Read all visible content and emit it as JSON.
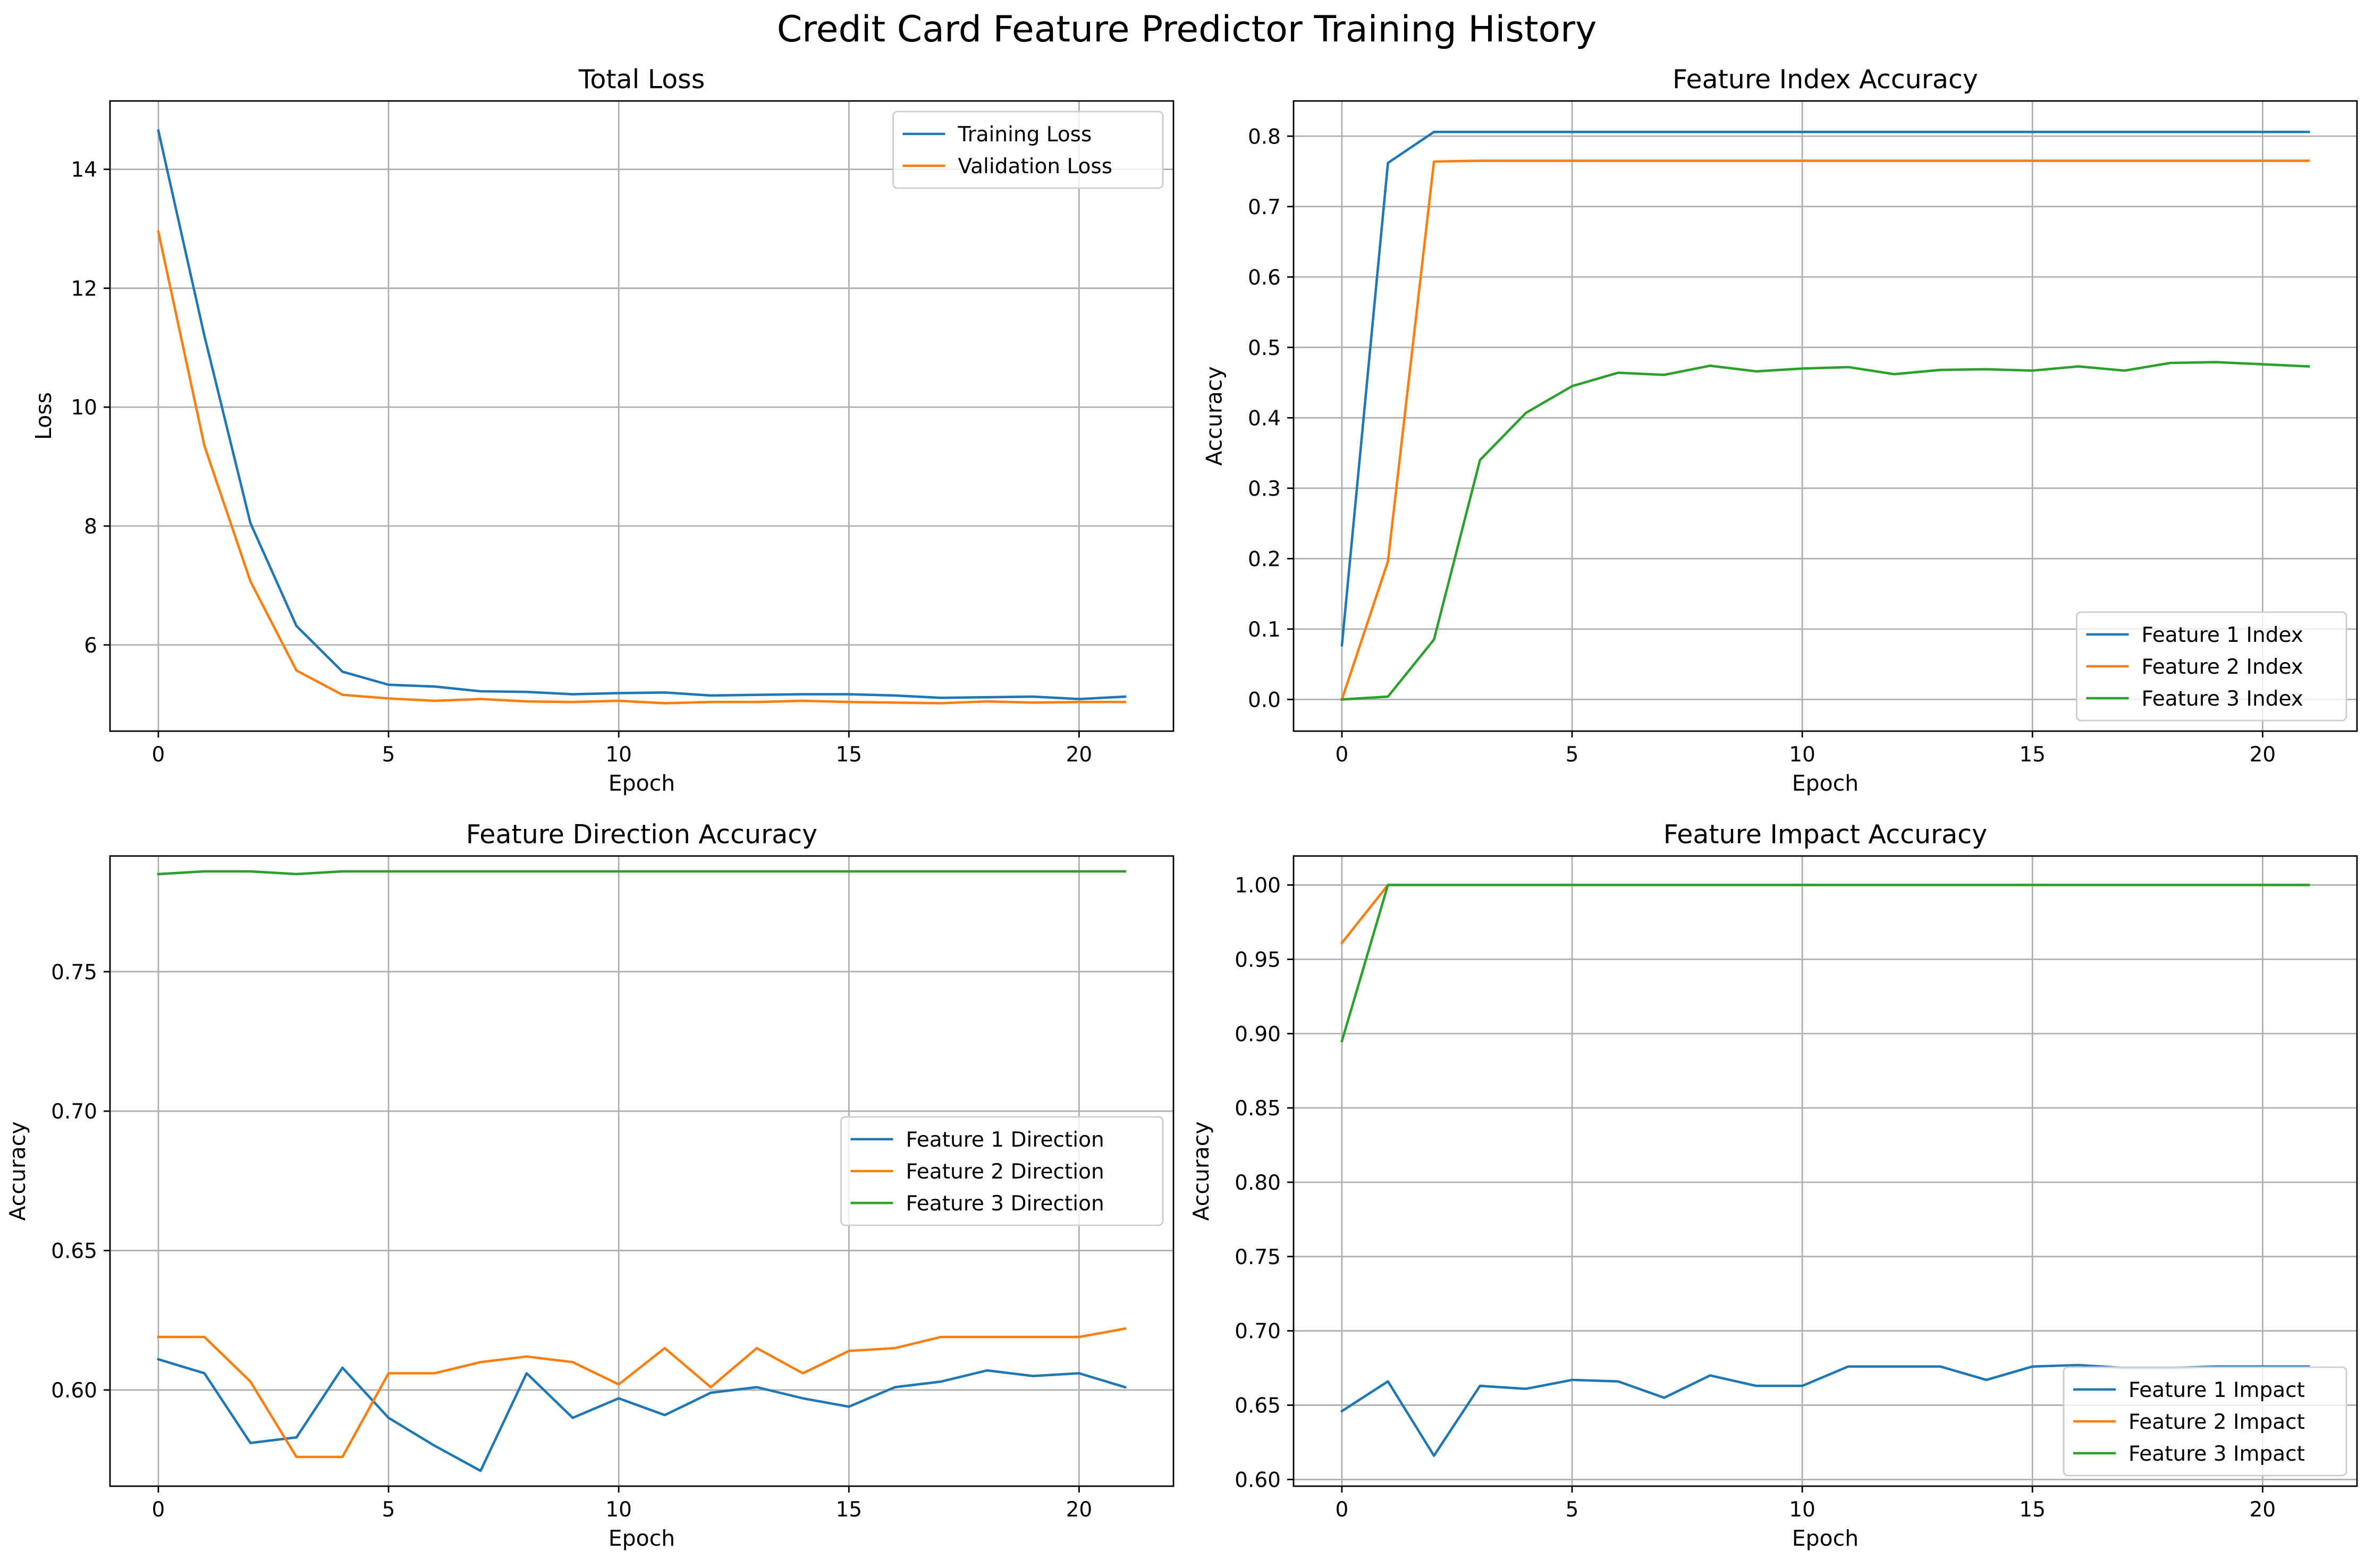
{
  "figure": {
    "suptitle": "Credit Card Feature Predictor Training History"
  },
  "colors": {
    "blue": "#1f77b4",
    "orange": "#ff7f0e",
    "green": "#2ca02c",
    "grid": "#b0b0b0"
  },
  "chart_data": [
    {
      "type": "line",
      "title": "Total Loss",
      "xlabel": "Epoch",
      "ylabel": "Loss",
      "xlim": [
        -1.05,
        22.05
      ],
      "ylim": [
        4.55,
        15.15
      ],
      "xticks": [
        0,
        5,
        10,
        15,
        20
      ],
      "yticks": [
        6,
        8,
        10,
        12,
        14
      ],
      "tick_decimals": 0,
      "grid": true,
      "legend": "upper right",
      "x": [
        0,
        1,
        2,
        3,
        4,
        5,
        6,
        7,
        8,
        9,
        10,
        11,
        12,
        13,
        14,
        15,
        16,
        17,
        18,
        19,
        20,
        21
      ],
      "series": [
        {
          "name": "Training Loss",
          "color": "#1f77b4",
          "values": [
            14.65,
            11.2,
            8.05,
            6.32,
            5.55,
            5.33,
            5.3,
            5.22,
            5.21,
            5.17,
            5.19,
            5.2,
            5.15,
            5.16,
            5.17,
            5.17,
            5.15,
            5.11,
            5.12,
            5.13,
            5.09,
            5.13
          ]
        },
        {
          "name": "Validation Loss",
          "color": "#ff7f0e",
          "values": [
            12.95,
            9.35,
            7.07,
            5.57,
            5.16,
            5.1,
            5.06,
            5.09,
            5.05,
            5.04,
            5.06,
            5.02,
            5.04,
            5.04,
            5.06,
            5.04,
            5.03,
            5.02,
            5.05,
            5.03,
            5.04,
            5.04
          ]
        }
      ]
    },
    {
      "type": "line",
      "title": "Feature Index Accuracy",
      "xlabel": "Epoch",
      "ylabel": "Accuracy",
      "xlim": [
        -1.05,
        22.05
      ],
      "ylim": [
        -0.045,
        0.85
      ],
      "xticks": [
        0,
        5,
        10,
        15,
        20
      ],
      "yticks": [
        0.0,
        0.1,
        0.2,
        0.3,
        0.4,
        0.5,
        0.6,
        0.7,
        0.8
      ],
      "tick_decimals": 1,
      "grid": true,
      "legend": "lower right",
      "x": [
        0,
        1,
        2,
        3,
        4,
        5,
        6,
        7,
        8,
        9,
        10,
        11,
        12,
        13,
        14,
        15,
        16,
        17,
        18,
        19,
        20,
        21
      ],
      "series": [
        {
          "name": "Feature 1 Index",
          "color": "#1f77b4",
          "values": [
            0.077,
            0.762,
            0.806,
            0.806,
            0.806,
            0.806,
            0.806,
            0.806,
            0.806,
            0.806,
            0.806,
            0.806,
            0.806,
            0.806,
            0.806,
            0.806,
            0.806,
            0.806,
            0.806,
            0.806,
            0.806,
            0.806
          ]
        },
        {
          "name": "Feature 2 Index",
          "color": "#ff7f0e",
          "values": [
            0.0,
            0.196,
            0.764,
            0.765,
            0.765,
            0.765,
            0.765,
            0.765,
            0.765,
            0.765,
            0.765,
            0.765,
            0.765,
            0.765,
            0.765,
            0.765,
            0.765,
            0.765,
            0.765,
            0.765,
            0.765,
            0.765
          ]
        },
        {
          "name": "Feature 3 Index",
          "color": "#2ca02c",
          "values": [
            0.0,
            0.004,
            0.085,
            0.34,
            0.407,
            0.445,
            0.464,
            0.461,
            0.474,
            0.466,
            0.47,
            0.472,
            0.462,
            0.468,
            0.469,
            0.467,
            0.473,
            0.467,
            0.478,
            0.479,
            0.476,
            0.473
          ]
        }
      ]
    },
    {
      "type": "line",
      "title": "Feature Direction Accuracy",
      "xlabel": "Epoch",
      "ylabel": "Accuracy",
      "xlim": [
        -1.05,
        22.05
      ],
      "ylim": [
        0.5655,
        0.7915
      ],
      "xticks": [
        0,
        5,
        10,
        15,
        20
      ],
      "yticks": [
        0.6,
        0.65,
        0.7,
        0.75
      ],
      "tick_decimals": 2,
      "grid": true,
      "legend": "center right",
      "x": [
        0,
        1,
        2,
        3,
        4,
        5,
        6,
        7,
        8,
        9,
        10,
        11,
        12,
        13,
        14,
        15,
        16,
        17,
        18,
        19,
        20,
        21
      ],
      "series": [
        {
          "name": "Feature 1 Direction",
          "color": "#1f77b4",
          "values": [
            0.611,
            0.606,
            0.581,
            0.583,
            0.608,
            0.59,
            0.58,
            0.571,
            0.606,
            0.59,
            0.597,
            0.591,
            0.599,
            0.601,
            0.597,
            0.594,
            0.601,
            0.603,
            0.607,
            0.605,
            0.606,
            0.601
          ]
        },
        {
          "name": "Feature 2 Direction",
          "color": "#ff7f0e",
          "values": [
            0.619,
            0.619,
            0.603,
            0.576,
            0.576,
            0.606,
            0.606,
            0.61,
            0.612,
            0.61,
            0.602,
            0.615,
            0.601,
            0.615,
            0.606,
            0.614,
            0.615,
            0.619,
            0.619,
            0.619,
            0.619,
            0.622
          ]
        },
        {
          "name": "Feature 3 Direction",
          "color": "#2ca02c",
          "values": [
            0.785,
            0.786,
            0.786,
            0.785,
            0.786,
            0.786,
            0.786,
            0.786,
            0.786,
            0.786,
            0.786,
            0.786,
            0.786,
            0.786,
            0.786,
            0.786,
            0.786,
            0.786,
            0.786,
            0.786,
            0.786,
            0.786
          ]
        }
      ]
    },
    {
      "type": "line",
      "title": "Feature Impact Accuracy",
      "xlabel": "Epoch",
      "ylabel": "Accuracy",
      "xlim": [
        -1.05,
        22.05
      ],
      "ylim": [
        0.5955,
        1.0195
      ],
      "xticks": [
        0,
        5,
        10,
        15,
        20
      ],
      "yticks": [
        0.6,
        0.65,
        0.7,
        0.75,
        0.8,
        0.85,
        0.9,
        0.95,
        1.0
      ],
      "tick_decimals": 2,
      "grid": true,
      "legend": "lower right",
      "x": [
        0,
        1,
        2,
        3,
        4,
        5,
        6,
        7,
        8,
        9,
        10,
        11,
        12,
        13,
        14,
        15,
        16,
        17,
        18,
        19,
        20,
        21
      ],
      "series": [
        {
          "name": "Feature 1 Impact",
          "color": "#1f77b4",
          "values": [
            0.646,
            0.666,
            0.616,
            0.663,
            0.661,
            0.667,
            0.666,
            0.655,
            0.67,
            0.663,
            0.663,
            0.676,
            0.676,
            0.676,
            0.667,
            0.676,
            0.677,
            0.675,
            0.675,
            0.676,
            0.676,
            0.676
          ]
        },
        {
          "name": "Feature 2 Impact",
          "color": "#ff7f0e",
          "values": [
            0.961,
            1.0,
            1.0,
            1.0,
            1.0,
            1.0,
            1.0,
            1.0,
            1.0,
            1.0,
            1.0,
            1.0,
            1.0,
            1.0,
            1.0,
            1.0,
            1.0,
            1.0,
            1.0,
            1.0,
            1.0,
            1.0
          ]
        },
        {
          "name": "Feature 3 Impact",
          "color": "#2ca02c",
          "values": [
            0.895,
            1.0,
            1.0,
            1.0,
            1.0,
            1.0,
            1.0,
            1.0,
            1.0,
            1.0,
            1.0,
            1.0,
            1.0,
            1.0,
            1.0,
            1.0,
            1.0,
            1.0,
            1.0,
            1.0,
            1.0,
            1.0
          ]
        }
      ]
    }
  ]
}
